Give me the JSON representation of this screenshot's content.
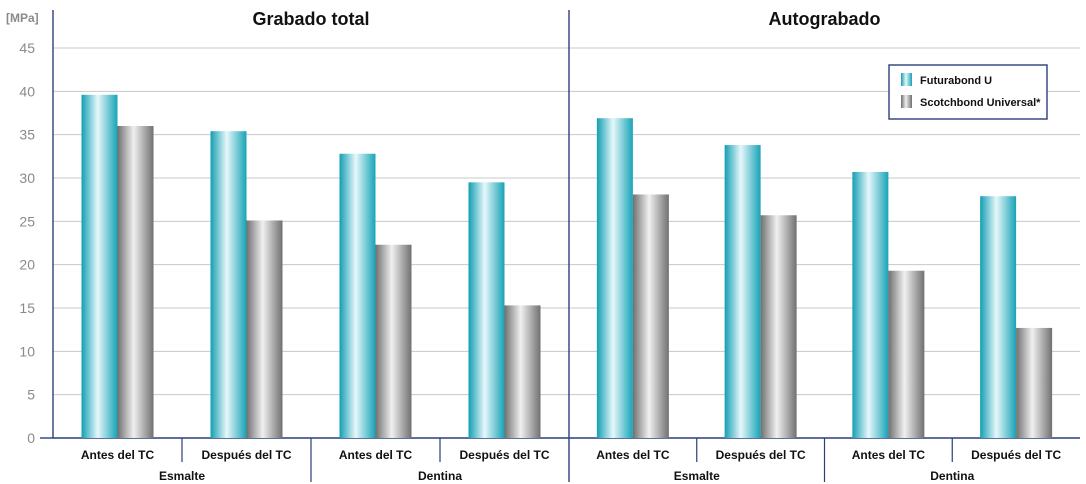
{
  "colors": {
    "accent_line": "#2a3f7a",
    "grid": "#c8c8c8",
    "series_1": "#1aa6b8",
    "series_2": "#8a8a8a"
  },
  "chart_data": {
    "type": "bar",
    "y_unit": "[MPa]",
    "ylim": [
      0,
      45
    ],
    "yticks": [
      0,
      5,
      10,
      15,
      20,
      25,
      30,
      35,
      40,
      45
    ],
    "grid": true,
    "legend": {
      "placement": "top-right",
      "entries": [
        "Futurabond U",
        "Scotchbond Universal*"
      ]
    },
    "panels": [
      {
        "title": "Grabado total",
        "categories": [
          "Antes del TC",
          "Después del TC",
          "Antes del TC",
          "Después del TC"
        ],
        "groups": [
          {
            "label": "Esmalte",
            "categories": [
              "Antes del TC",
              "Después del TC"
            ]
          },
          {
            "label": "Dentina",
            "categories": [
              "Antes del TC",
              "Después del TC"
            ]
          }
        ],
        "series": [
          {
            "name": "Futurabond U",
            "values": [
              39.6,
              35.4,
              32.8,
              29.5
            ]
          },
          {
            "name": "Scotchbond Universal*",
            "values": [
              36.0,
              25.1,
              22.3,
              15.3
            ]
          }
        ]
      },
      {
        "title": "Autograbado",
        "categories": [
          "Antes del TC",
          "Después del TC",
          "Antes del TC",
          "Después del TC"
        ],
        "groups": [
          {
            "label": "Esmalte",
            "categories": [
              "Antes del TC",
              "Después del TC"
            ]
          },
          {
            "label": "Dentina",
            "categories": [
              "Antes del TC",
              "Después del TC"
            ]
          }
        ],
        "series": [
          {
            "name": "Futurabond U",
            "values": [
              36.9,
              33.8,
              30.7,
              27.9
            ]
          },
          {
            "name": "Scotchbond Universal*",
            "values": [
              28.1,
              25.7,
              19.3,
              12.7
            ]
          }
        ]
      }
    ]
  }
}
